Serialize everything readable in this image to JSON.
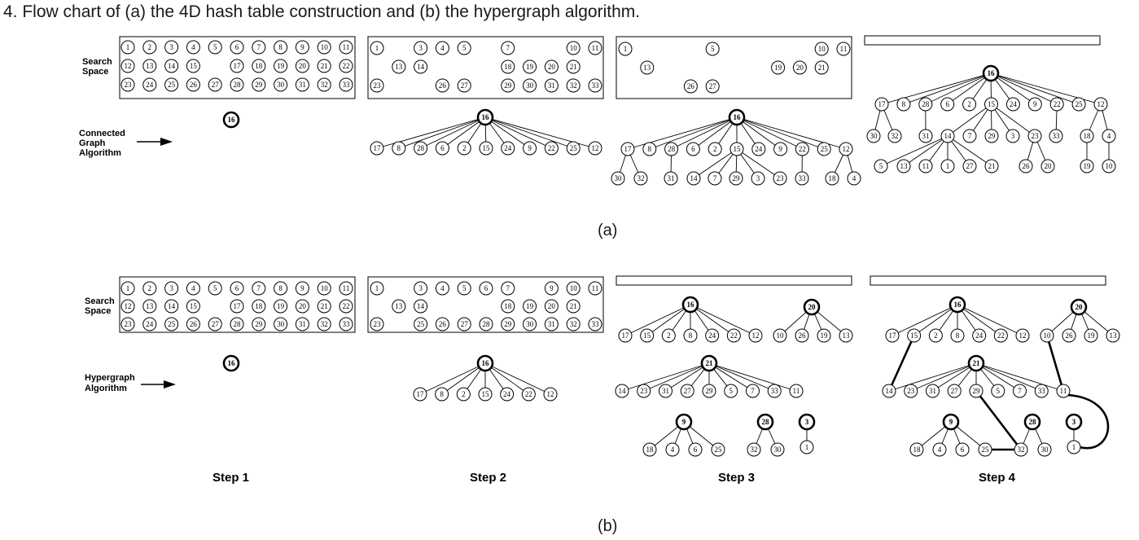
{
  "caption": "4. Flow chart of (a) the 4D hash table construction and (b) the hypergraph algorithm.",
  "panel_a": {
    "label": "(a)",
    "search_space_label": [
      "Search",
      "Space"
    ],
    "algorithm_label": [
      "Connected",
      "Graph",
      "Algorithm"
    ],
    "step1": {
      "search_space": [
        [
          1,
          2,
          3,
          4,
          5,
          6,
          7,
          8,
          9,
          10,
          11
        ],
        [
          12,
          13,
          14,
          15,
          null,
          17,
          18,
          19,
          20,
          21,
          22
        ],
        [
          23,
          24,
          25,
          26,
          27,
          28,
          29,
          30,
          31,
          32,
          33
        ]
      ],
      "root": 16
    },
    "step2": {
      "search_space": [
        [
          1,
          null,
          3,
          4,
          5,
          null,
          7,
          null,
          null,
          10,
          11
        ],
        [
          null,
          13,
          14,
          null,
          null,
          null,
          18,
          19,
          20,
          21,
          null
        ],
        [
          23,
          null,
          null,
          26,
          27,
          null,
          29,
          30,
          31,
          32,
          33
        ]
      ],
      "root": 16,
      "children": [
        17,
        8,
        28,
        6,
        2,
        15,
        24,
        9,
        22,
        25,
        12
      ]
    },
    "step3": {
      "search_space": [
        [
          1,
          null,
          null,
          null,
          5,
          null,
          null,
          null,
          null,
          10,
          11
        ],
        [
          null,
          13,
          null,
          null,
          null,
          null,
          null,
          19,
          20,
          21,
          null
        ],
        [
          null,
          null,
          null,
          26,
          27,
          null,
          null,
          null,
          null,
          null,
          null
        ]
      ],
      "root": 16,
      "children": [
        17,
        8,
        28,
        6,
        2,
        15,
        24,
        9,
        22,
        25,
        12
      ],
      "grandchildren": {
        "17": [
          30,
          32
        ],
        "28": [
          31
        ],
        "15": [
          14,
          7,
          29,
          3,
          23
        ],
        "22": [
          33
        ],
        "12": [
          18,
          4
        ]
      }
    },
    "step4": {
      "root": 16,
      "children": [
        17,
        8,
        28,
        6,
        2,
        15,
        24,
        9,
        22,
        25,
        12
      ],
      "grandchildren": {
        "17": [
          30,
          32
        ],
        "28": [
          31
        ],
        "15": [
          14,
          7,
          29,
          3,
          23
        ],
        "22": [
          33
        ],
        "12": [
          18,
          4
        ]
      },
      "great_grandchildren": {
        "14": [
          5,
          13,
          11,
          1,
          27,
          21
        ],
        "23": [
          26,
          20
        ],
        "18": [
          19
        ],
        "4": [
          10
        ]
      }
    }
  },
  "panel_b": {
    "label": "(b)",
    "search_space_label": [
      "Search",
      "Space"
    ],
    "algorithm_label": [
      "Hypergraph",
      "Algorithm"
    ],
    "step1": {
      "search_space": [
        [
          1,
          2,
          3,
          4,
          5,
          6,
          7,
          8,
          9,
          10,
          11
        ],
        [
          12,
          13,
          14,
          15,
          null,
          17,
          18,
          19,
          20,
          21,
          22
        ],
        [
          23,
          24,
          25,
          26,
          27,
          28,
          29,
          30,
          31,
          32,
          33
        ]
      ],
      "root": 16
    },
    "step2": {
      "search_space": [
        [
          1,
          null,
          3,
          4,
          5,
          6,
          7,
          null,
          9,
          10,
          11
        ],
        [
          null,
          13,
          14,
          null,
          null,
          null,
          18,
          19,
          20,
          21,
          null
        ],
        [
          23,
          null,
          25,
          26,
          27,
          28,
          29,
          30,
          31,
          32,
          33
        ]
      ],
      "root": 16,
      "children": [
        17,
        8,
        2,
        15,
        24,
        22,
        12
      ]
    },
    "step3": {
      "trees": [
        {
          "root": 16,
          "children": [
            17,
            15,
            2,
            8,
            24,
            22,
            12
          ]
        },
        {
          "root": 20,
          "children": [
            10,
            26,
            19,
            13
          ]
        },
        {
          "root": 21,
          "children": [
            14,
            23,
            31,
            27,
            29,
            5,
            7,
            33,
            11
          ]
        },
        {
          "root": 9,
          "children": [
            18,
            4,
            6,
            25
          ]
        },
        {
          "root": 28,
          "children": [
            32,
            30
          ]
        },
        {
          "root": 3,
          "children": [
            1
          ]
        }
      ]
    },
    "step4": {
      "trees": [
        {
          "root": 16,
          "children": [
            17,
            15,
            2,
            8,
            24,
            22,
            12
          ]
        },
        {
          "root": 20,
          "children": [
            10,
            26,
            19,
            13
          ]
        },
        {
          "root": 21,
          "children": [
            14,
            23,
            31,
            27,
            29,
            5,
            7,
            33,
            11
          ]
        },
        {
          "root": 9,
          "children": [
            18,
            4,
            6,
            25
          ]
        },
        {
          "root": 28,
          "children": [
            32,
            30
          ]
        },
        {
          "root": 3,
          "children": [
            1
          ]
        }
      ],
      "hyper_links": [
        [
          "15",
          "14"
        ],
        [
          "10",
          "11"
        ],
        [
          "29",
          "32"
        ],
        [
          "25",
          "32"
        ],
        [
          "11",
          "1"
        ]
      ]
    }
  },
  "steps": [
    "Step 1",
    "Step 2",
    "Step 3",
    "Step 4"
  ]
}
